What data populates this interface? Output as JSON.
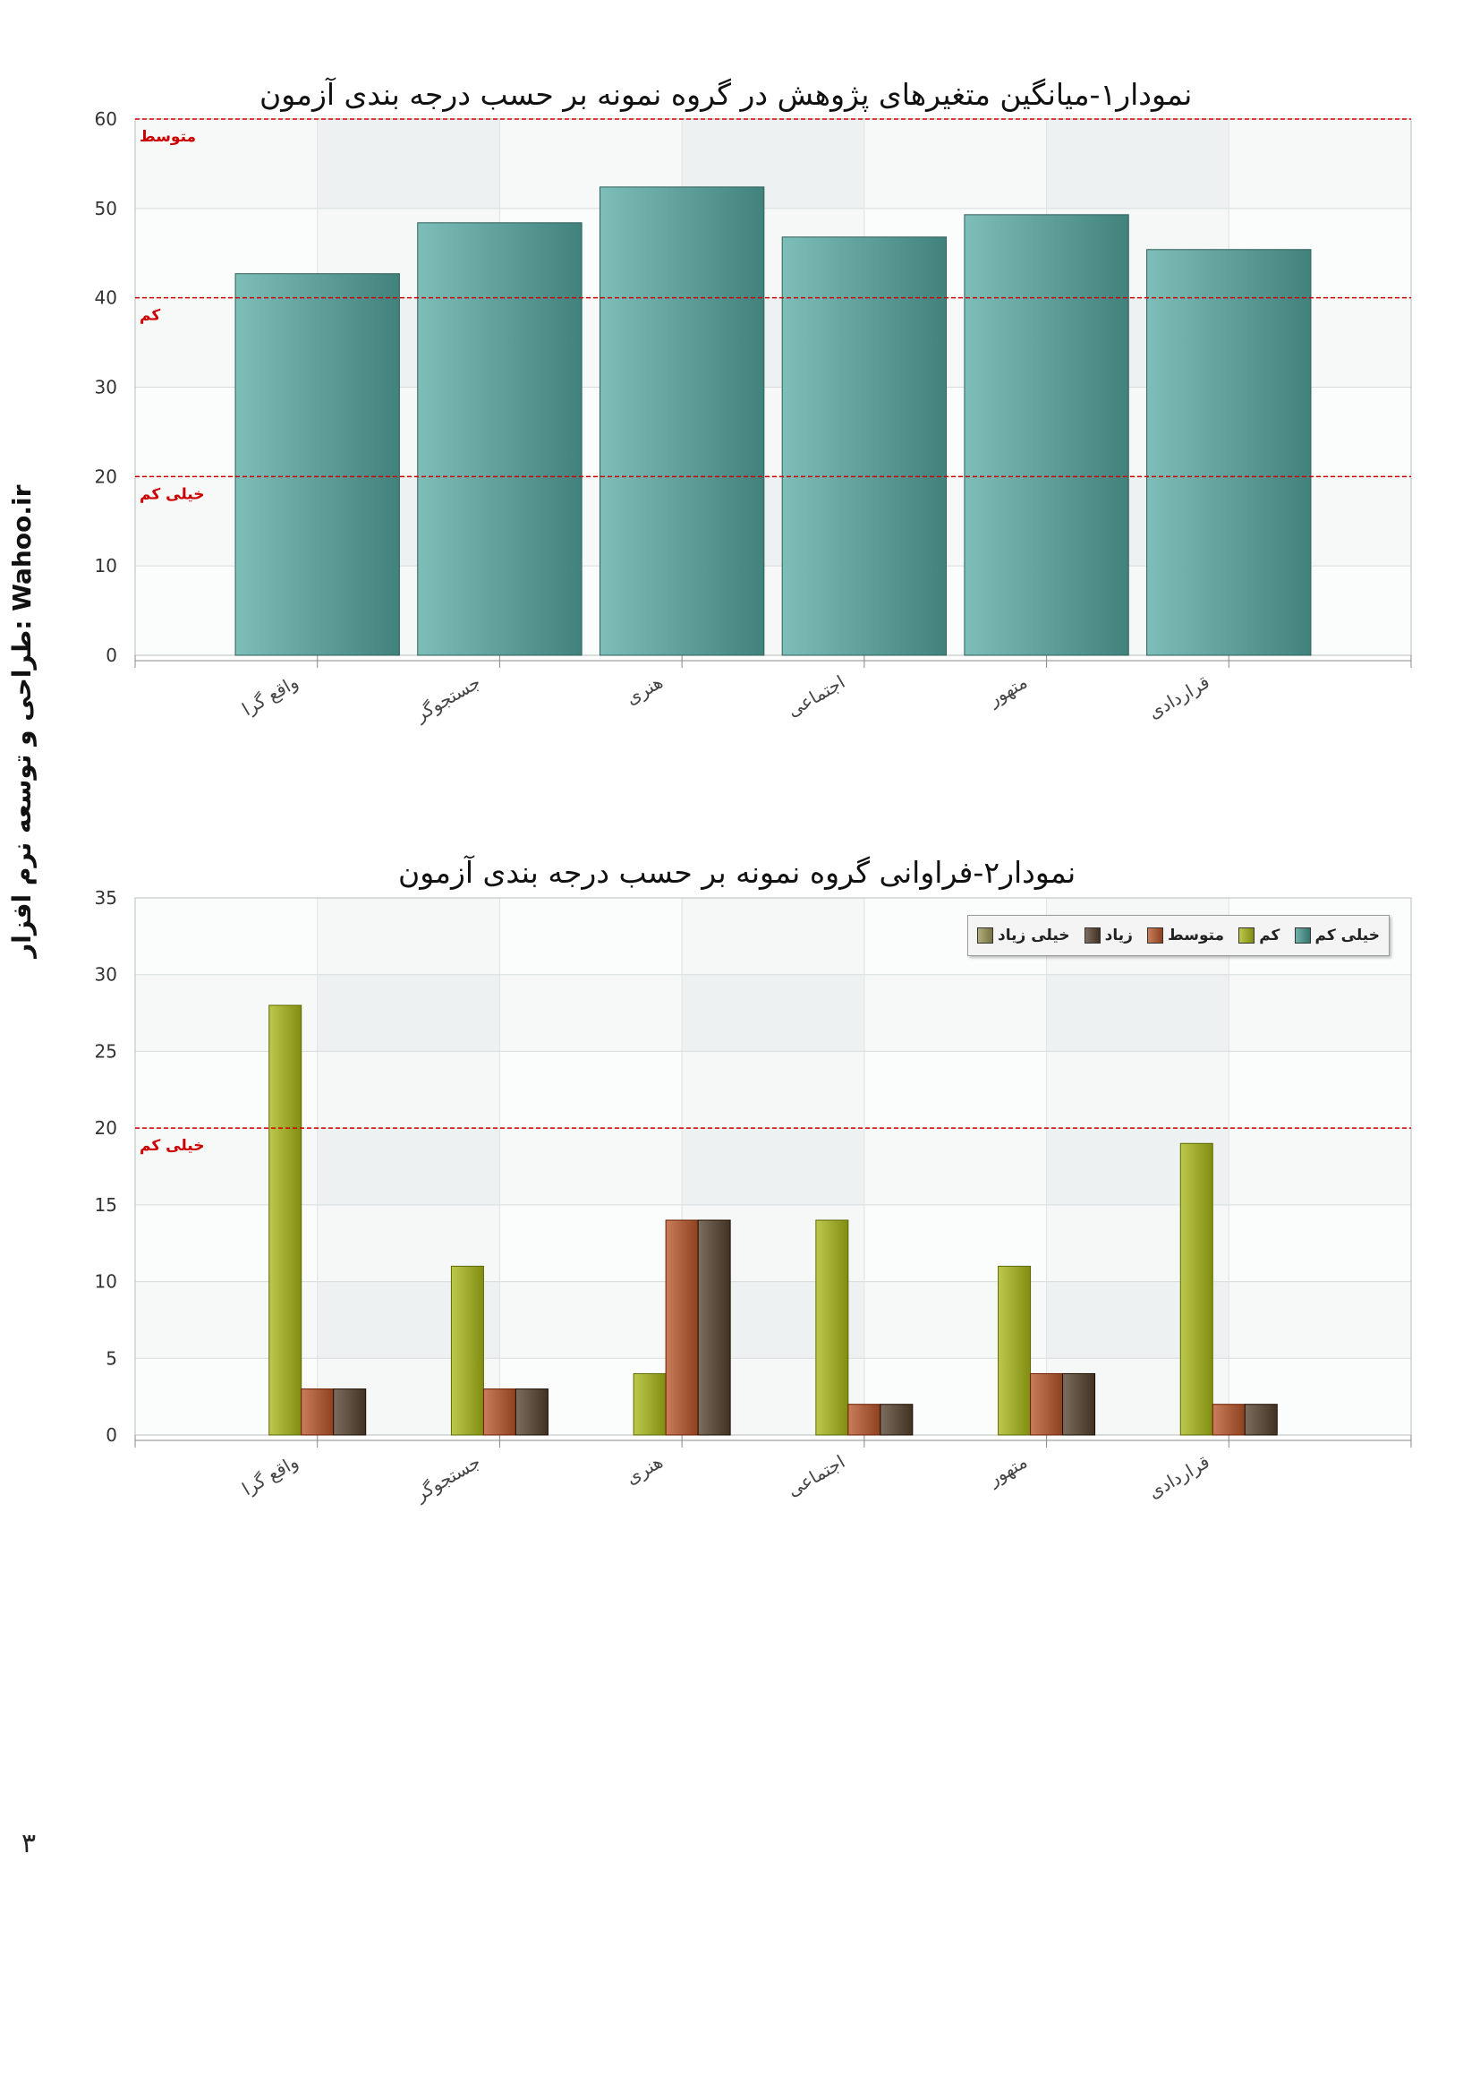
{
  "side_text": "Wahoo.ir :طراحی و توسعه نرم افزار",
  "page_number": "۳",
  "chart_data": [
    {
      "type": "bar",
      "title": "نمودار۱-میانگین متغیرهای پژوهش در گروه نمونه بر حسب درجه بندی آزمون",
      "categories": [
        "واقع گرا",
        "جستجوگر",
        "هنری",
        "اجتماعی",
        "متهور",
        "قراردادی"
      ],
      "series": [
        {
          "values": [
            42.7,
            48.4,
            52.4,
            46.8,
            49.3,
            45.4
          ],
          "color": "#5a9b95"
        }
      ],
      "ylim": [
        0,
        60
      ],
      "yticks": [
        0,
        10,
        20,
        30,
        40,
        50,
        60
      ],
      "reference_lines": [
        {
          "value": 60,
          "label": "متوسط"
        },
        {
          "value": 40,
          "label": "کم"
        },
        {
          "value": 20,
          "label": "خیلی کم"
        }
      ],
      "reference_line_color": "#cc0000",
      "grid": true
    },
    {
      "type": "bar",
      "title": "نمودار۲-فراوانی گروه نمونه بر حسب درجه بندی آزمون",
      "categories": [
        "واقع گرا",
        "جستجوگر",
        "هنری",
        "اجتماعی",
        "متهور",
        "قراردادی"
      ],
      "series": [
        {
          "name": "خیلی کم",
          "values": [
            0,
            0,
            0,
            0,
            0,
            0
          ],
          "color": "#4f8e88"
        },
        {
          "name": "کم",
          "values": [
            28,
            11,
            4,
            14,
            11,
            19
          ],
          "color": "#9aa62a"
        },
        {
          "name": "متوسط",
          "values": [
            3,
            3,
            14,
            2,
            4,
            2
          ],
          "color": "#a65a38"
        },
        {
          "name": "زیاد",
          "values": [
            3,
            3,
            14,
            2,
            4,
            2
          ],
          "color": "#5a4a3c"
        },
        {
          "name": "خیلی زیاد",
          "values": [
            0,
            0,
            0,
            0,
            0,
            0
          ],
          "color": "#8e8a5a"
        }
      ],
      "ylim": [
        0,
        35
      ],
      "yticks": [
        0,
        5,
        10,
        15,
        20,
        25,
        30,
        35
      ],
      "reference_lines": [
        {
          "value": 20,
          "label": "خیلی کم"
        }
      ],
      "reference_line_color": "#cc0000",
      "legend": "top-right",
      "grid": true
    }
  ]
}
